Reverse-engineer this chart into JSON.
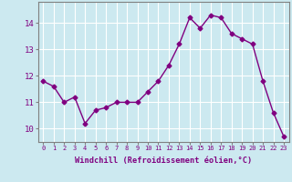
{
  "x": [
    0,
    1,
    2,
    3,
    4,
    5,
    6,
    7,
    8,
    9,
    10,
    11,
    12,
    13,
    14,
    15,
    16,
    17,
    18,
    19,
    20,
    21,
    22,
    23
  ],
  "y": [
    11.8,
    11.6,
    11.0,
    11.2,
    10.2,
    10.7,
    10.8,
    11.0,
    11.0,
    11.0,
    11.4,
    11.8,
    12.4,
    13.2,
    14.2,
    13.8,
    14.3,
    14.2,
    13.6,
    13.4,
    13.2,
    11.8,
    10.6,
    9.7
  ],
  "line_color": "#800080",
  "marker": "D",
  "marker_size": 2.5,
  "line_width": 1.0,
  "background_color": "#cce9f0",
  "grid_color": "#ffffff",
  "xlabel": "Windchill (Refroidissement éolien,°C)",
  "xlabel_color": "#800080",
  "tick_color": "#800080",
  "ylim": [
    9.5,
    14.8
  ],
  "yticks": [
    10,
    11,
    12,
    13,
    14
  ],
  "xticks": [
    0,
    1,
    2,
    3,
    4,
    5,
    6,
    7,
    8,
    9,
    10,
    11,
    12,
    13,
    14,
    15,
    16,
    17,
    18,
    19,
    20,
    21,
    22,
    23
  ],
  "spine_color": "#808080"
}
